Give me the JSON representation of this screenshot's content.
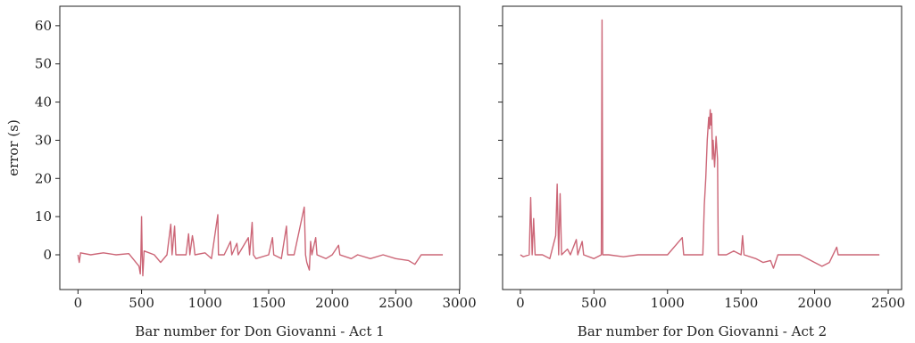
{
  "chart_data": [
    {
      "type": "line",
      "xlabel": "Bar number for Don Giovanni - Act 1",
      "ylabel": "error (s)",
      "xlim": [
        -143,
        3003
      ],
      "ylim": [
        -9.1,
        65.1
      ],
      "xticks": [
        0,
        500,
        1000,
        1500,
        2000,
        2500,
        3000
      ],
      "yticks": [
        0,
        10,
        20,
        30,
        40,
        50,
        60
      ],
      "x": [
        0,
        10,
        20,
        100,
        200,
        300,
        400,
        480,
        490,
        495,
        500,
        505,
        510,
        520,
        600,
        650,
        700,
        730,
        740,
        760,
        770,
        850,
        870,
        880,
        900,
        910,
        920,
        1000,
        1050,
        1100,
        1105,
        1150,
        1200,
        1210,
        1250,
        1260,
        1340,
        1350,
        1370,
        1380,
        1400,
        1500,
        1530,
        1540,
        1600,
        1640,
        1650,
        1700,
        1780,
        1790,
        1800,
        1820,
        1830,
        1840,
        1870,
        1880,
        1950,
        2000,
        2050,
        2060,
        2150,
        2200,
        2300,
        2400,
        2500,
        2600,
        2650,
        2700,
        2870
      ],
      "series": [
        {
          "color": "#cc6677",
          "values": [
            0,
            -2,
            0.5,
            0,
            0.5,
            0,
            0.3,
            -3,
            -5,
            0,
            10,
            0,
            -5.5,
            1,
            0,
            -2,
            0,
            8,
            0,
            7.5,
            0,
            0,
            5.5,
            0,
            5,
            3,
            0,
            0.5,
            -1,
            10.5,
            0,
            0,
            3.5,
            0,
            3,
            0,
            4.5,
            0,
            8.5,
            0,
            -1,
            0,
            4.5,
            0,
            -1,
            7.5,
            0,
            0,
            12.5,
            0,
            -2,
            -4,
            3.5,
            0,
            4.5,
            0,
            -1,
            0,
            2.5,
            0,
            -1,
            0,
            -1,
            0,
            -1,
            -1.5,
            -2.5,
            0,
            0
          ]
        }
      ]
    },
    {
      "type": "line",
      "xlabel": "Bar number for Don Giovanni - Act 2",
      "xlim": [
        -121,
        2591
      ],
      "ylim": [
        -9.1,
        65.1
      ],
      "xticks": [
        0,
        500,
        1000,
        1500,
        2000,
        2500
      ],
      "yticks": [
        0,
        10,
        20,
        30,
        40,
        50,
        60
      ],
      "x": [
        0,
        20,
        60,
        70,
        80,
        90,
        100,
        150,
        200,
        240,
        250,
        260,
        270,
        280,
        320,
        340,
        380,
        390,
        420,
        430,
        500,
        550,
        555,
        560,
        600,
        700,
        800,
        900,
        1000,
        1100,
        1110,
        1200,
        1240,
        1250,
        1260,
        1270,
        1280,
        1285,
        1290,
        1295,
        1300,
        1305,
        1310,
        1320,
        1330,
        1340,
        1345,
        1400,
        1450,
        1500,
        1510,
        1520,
        1600,
        1650,
        1700,
        1720,
        1750,
        1900,
        1950,
        2000,
        2050,
        2100,
        2150,
        2160,
        2300,
        2440
      ],
      "series": [
        {
          "color": "#cc6677",
          "values": [
            0,
            -0.5,
            0,
            15,
            0,
            9.5,
            0,
            0,
            -1,
            5,
            18.5,
            0,
            16,
            0,
            1.5,
            0,
            4,
            0,
            3.5,
            0,
            -1,
            0,
            61.5,
            0,
            0,
            -0.5,
            0,
            0,
            0,
            4.5,
            0,
            0,
            0,
            13,
            20,
            30,
            36,
            33,
            38,
            34,
            37,
            25,
            30,
            23,
            31,
            25,
            0,
            0,
            1,
            0,
            5,
            0,
            -1,
            -2,
            -1.5,
            -3.5,
            0,
            0,
            -1,
            -2,
            -3,
            -2,
            2,
            0,
            0,
            0
          ]
        }
      ]
    }
  ]
}
